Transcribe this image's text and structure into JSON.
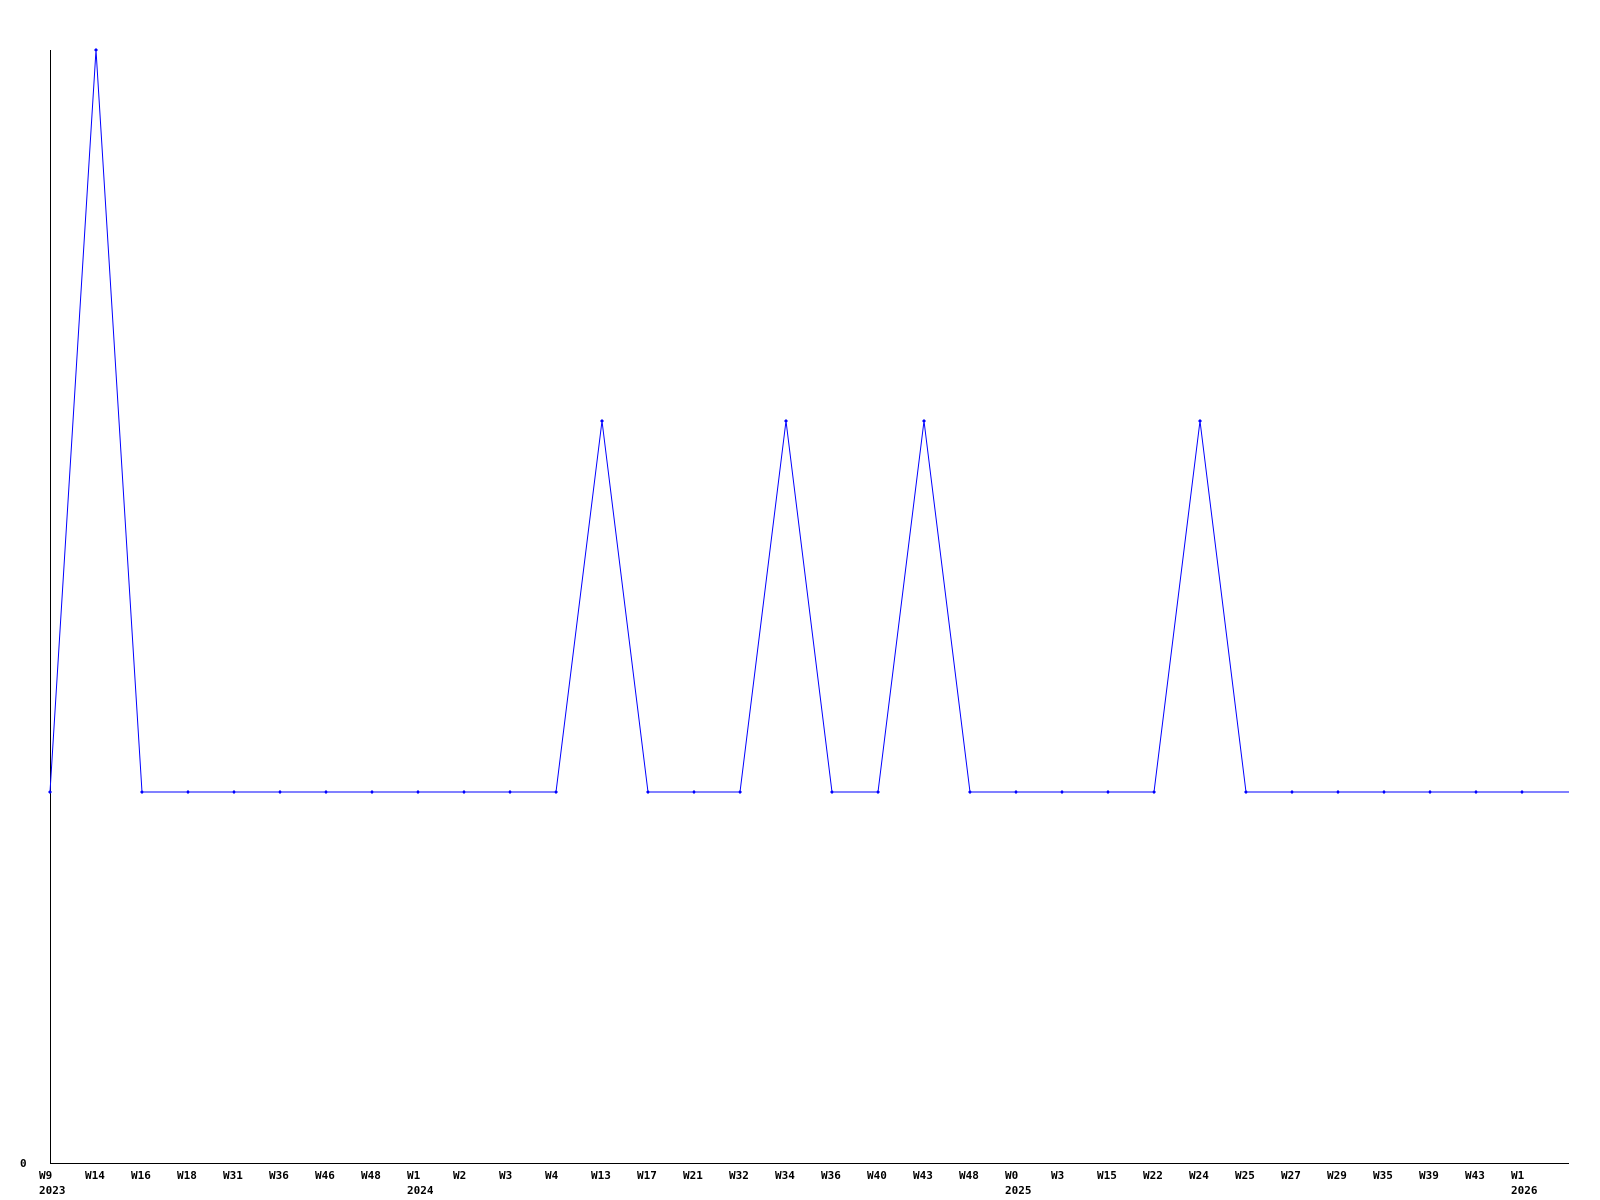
{
  "chart_data": {
    "type": "line",
    "title": "",
    "xlabel": "",
    "ylabel": "",
    "categories": [
      "W9",
      "W14",
      "W16",
      "W18",
      "W31",
      "W36",
      "W46",
      "W48",
      "W1",
      "W2",
      "W3",
      "W4",
      "W13",
      "W17",
      "W21",
      "W32",
      "W34",
      "W36",
      "W40",
      "W43",
      "W48",
      "W0",
      "W3",
      "W15",
      "W22",
      "W24",
      "W25",
      "W27",
      "W29",
      "W35",
      "W39",
      "W43",
      "W1"
    ],
    "year_labels": [
      {
        "index": 0,
        "label": "2023"
      },
      {
        "index": 8,
        "label": "2024"
      },
      {
        "index": 21,
        "label": "2025"
      },
      {
        "index": 32,
        "label": "2026"
      }
    ],
    "series": [
      {
        "values": [
          1,
          3,
          1,
          1,
          1,
          1,
          1,
          1,
          1,
          1,
          1,
          1,
          2,
          1,
          1,
          1,
          2,
          1,
          1,
          2,
          1,
          1,
          1,
          1,
          1,
          2,
          1,
          1,
          1,
          1,
          1,
          1,
          1
        ]
      }
    ],
    "ylim": [
      0,
      3
    ],
    "y_tick_labels": [
      "0"
    ],
    "grid": false,
    "legend": "none",
    "colors": {
      "line": "#0000ff",
      "axis": "#000000"
    }
  }
}
